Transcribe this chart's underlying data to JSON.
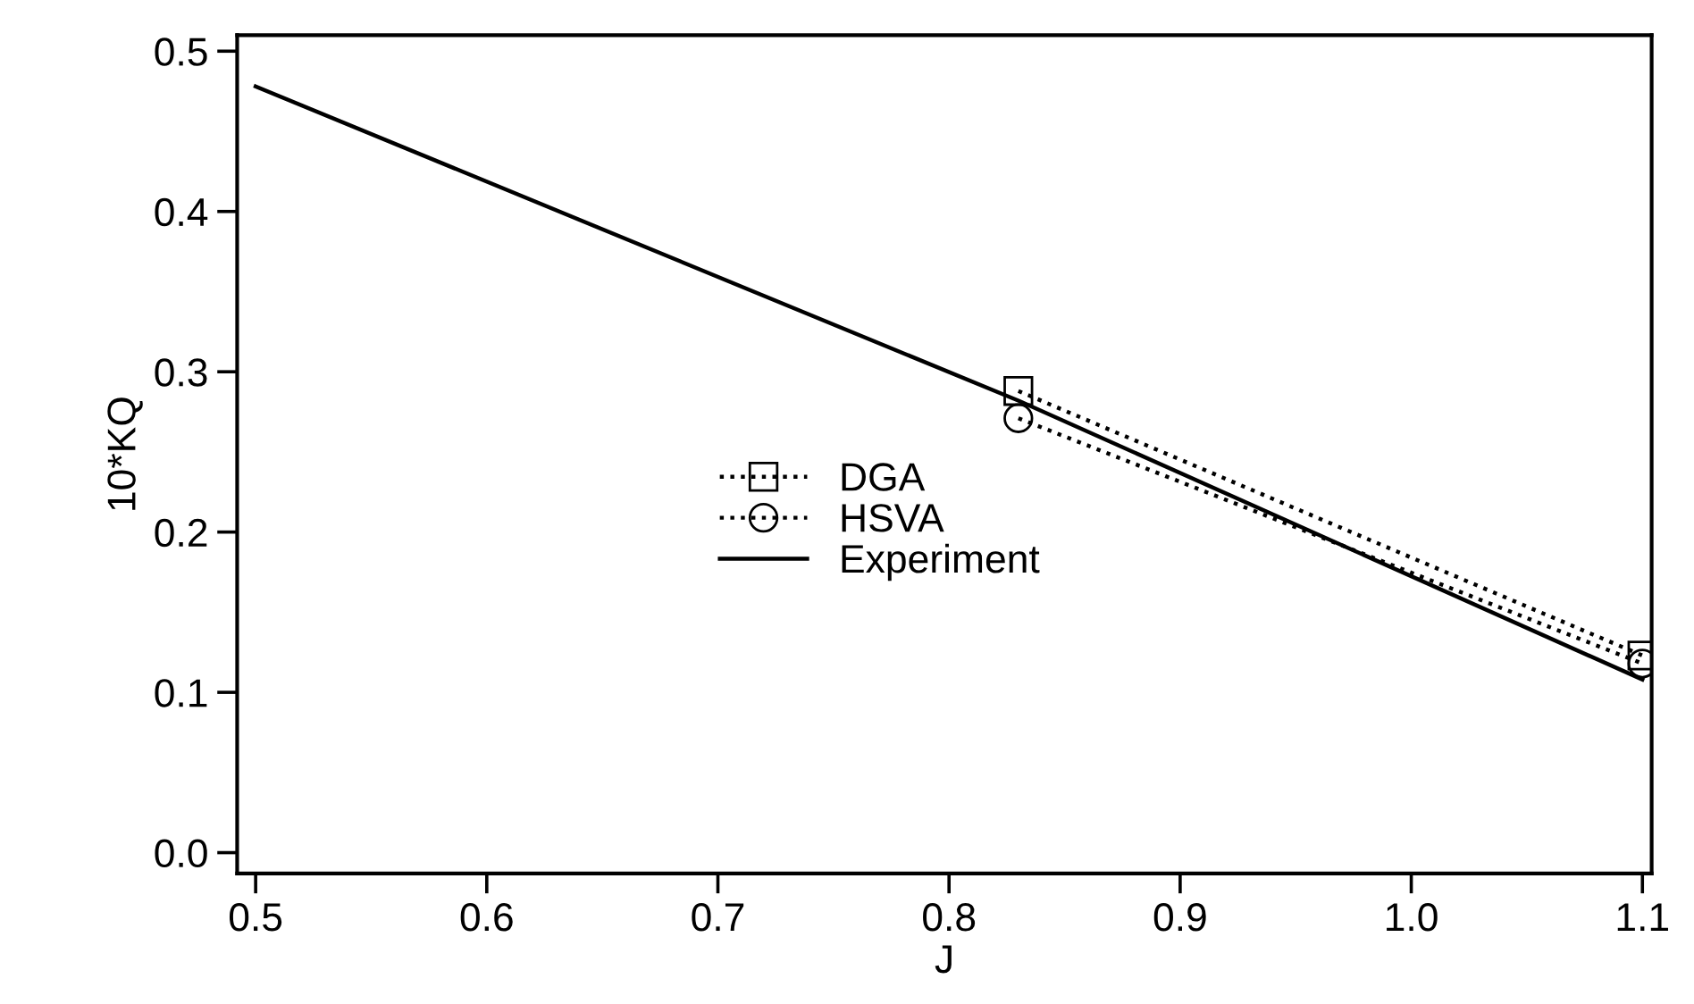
{
  "chart_data": {
    "type": "line",
    "xlabel": "J",
    "ylabel": "10*KQ",
    "series": [
      {
        "name": "DGA",
        "color": "#000000",
        "x": [
          0.83,
          1.1
        ],
        "values": [
          0.288,
          0.123
        ],
        "marker": "square",
        "line_style": "dotted"
      },
      {
        "name": "HSVA",
        "color": "#000000",
        "x": [
          0.83,
          1.1
        ],
        "values": [
          0.271,
          0.118
        ],
        "marker": "circle",
        "line_style": "dotted"
      },
      {
        "name": "Experiment",
        "color": "#000000",
        "x": [
          0.5,
          0.83,
          1.1
        ],
        "values": [
          0.478,
          0.282,
          0.108
        ],
        "marker": "none",
        "line_style": "solid"
      }
    ],
    "xlim": [
      0.492,
      1.104
    ],
    "ylim": [
      -0.013,
      0.51
    ],
    "xticks": [
      0.5,
      0.6,
      0.7,
      0.8,
      0.9,
      {
        "value": 1,
        "label": "1.0"
      },
      1.1
    ],
    "yticks": [
      {
        "value": 0,
        "label": "0.0"
      },
      0.1,
      0.2,
      0.3,
      0.4,
      0.5
    ],
    "grid": false,
    "legend": "center"
  }
}
